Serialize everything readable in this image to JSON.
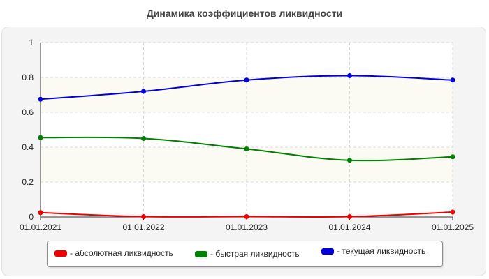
{
  "chart_data": {
    "type": "line",
    "title": "Динамика коэффициентов ликвидности",
    "xlabel": "",
    "ylabel": "",
    "categories": [
      "01.01.2021",
      "01.01.2022",
      "01.01.2023",
      "01.01.2024",
      "01.01.2025"
    ],
    "ylim": [
      0,
      1
    ],
    "yticks": [
      "0",
      "0.2",
      "0.4",
      "0.6",
      "0.8",
      "1"
    ],
    "grid": true,
    "legend_position": "bottom",
    "series": [
      {
        "name": "- абсолютная ликвидность",
        "color": "#ee0000",
        "values": [
          0.025,
          0.002,
          0.002,
          0.002,
          0.028
        ]
      },
      {
        "name": "- быстрая ликвидность",
        "color": "#008000",
        "values": [
          0.455,
          0.45,
          0.39,
          0.325,
          0.345
        ]
      },
      {
        "name": "- текущая ликвидность",
        "color": "#0000dd",
        "values": [
          0.675,
          0.72,
          0.785,
          0.81,
          0.785
        ]
      }
    ]
  }
}
